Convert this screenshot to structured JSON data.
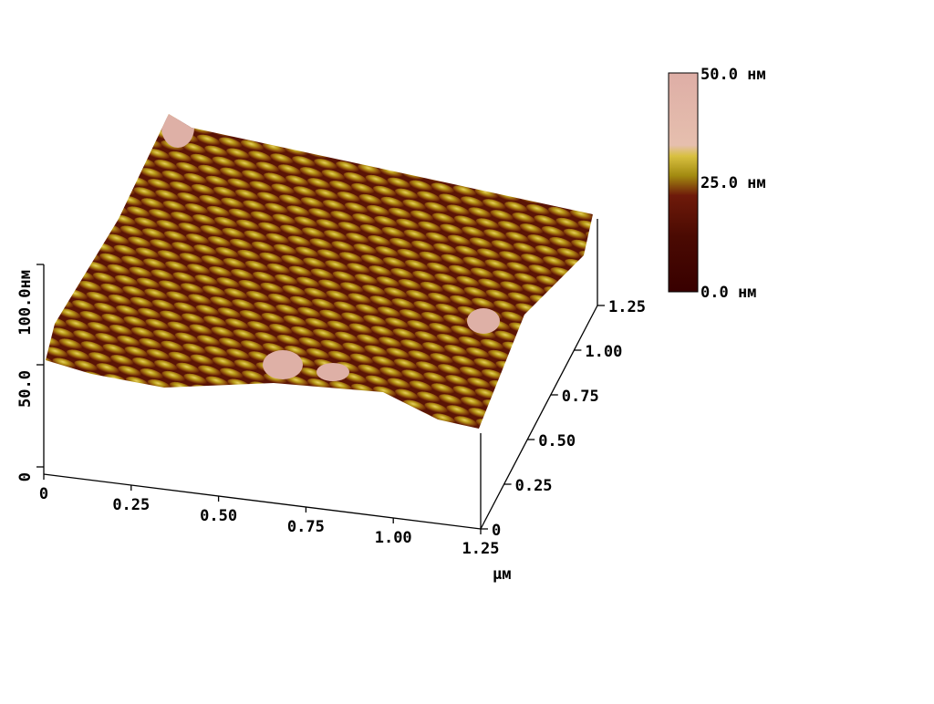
{
  "surface": {
    "z_axis": {
      "ticks": [
        "0",
        "50.0",
        "100.0нм"
      ]
    },
    "x_axis": {
      "ticks": [
        "0",
        "0.25",
        "0.50",
        "0.75",
        "1.00",
        "1.25"
      ],
      "unit": "µм"
    },
    "y_axis": {
      "ticks": [
        "0",
        "0.25",
        "0.50",
        "0.75",
        "1.00",
        "1.25"
      ]
    },
    "colorbar": {
      "labels": [
        "50.0 нм",
        "25.0 нм",
        "0.0 нм"
      ]
    }
  }
}
